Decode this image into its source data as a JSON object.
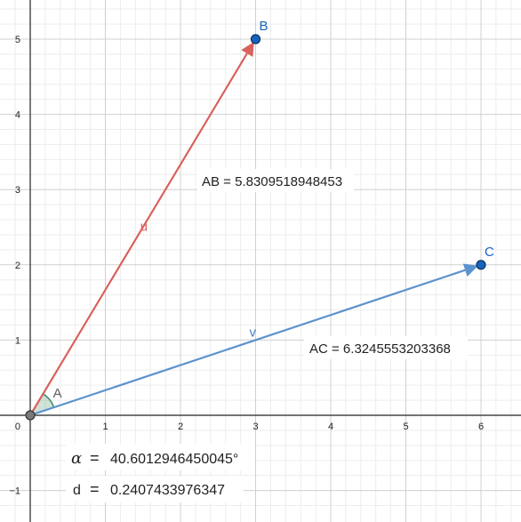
{
  "axes": {
    "x_ticks": [
      "1",
      "2",
      "3",
      "4",
      "5",
      "6"
    ],
    "y_ticks": [
      "5",
      "4",
      "3",
      "2",
      "1",
      "−1"
    ],
    "origin_label": "0",
    "xlim": [
      -0.35,
      6.55
    ],
    "ylim": [
      -1.4,
      5.5
    ],
    "grid": true,
    "minor_grid": true
  },
  "points": {
    "A": {
      "label": "A",
      "x": 0,
      "y": 0,
      "color": "#606060"
    },
    "B": {
      "label": "B",
      "x": 3,
      "y": 5,
      "color": "#1565c0"
    },
    "C": {
      "label": "C",
      "x": 6,
      "y": 2,
      "color": "#1565c0"
    }
  },
  "vectors": {
    "u": {
      "label": "u",
      "from": "A",
      "to": "B",
      "color": "#d9625e"
    },
    "v": {
      "label": "v",
      "from": "A",
      "to": "C",
      "color": "#5b92cf"
    }
  },
  "angle": {
    "label": "A",
    "color": "#3d8a5e"
  },
  "measurements": {
    "ab": {
      "label": "AB = 5.8309518948453"
    },
    "ac": {
      "label": "AC = 6.3245553203368"
    },
    "alpha": {
      "symbol": "α",
      "eq": "=",
      "value": "40.6012946450045°"
    },
    "d": {
      "symbol": "d",
      "eq": "=",
      "value": "0.2407433976347"
    }
  }
}
